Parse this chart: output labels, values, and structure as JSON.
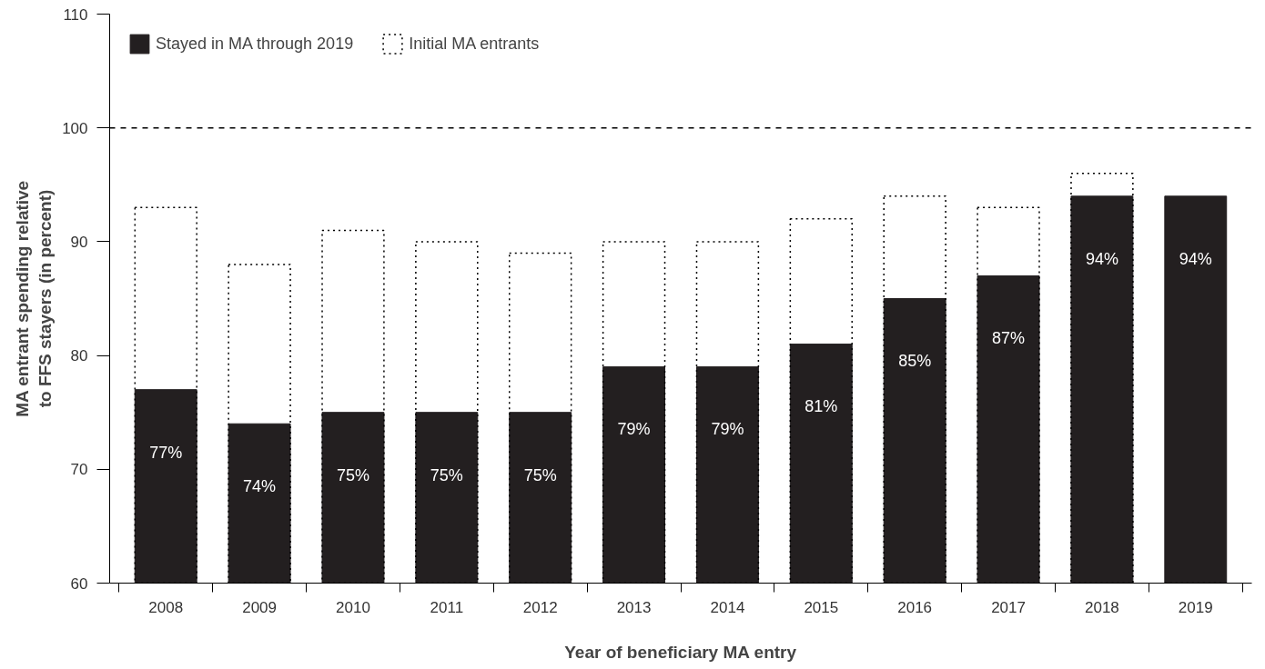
{
  "chart_data": {
    "type": "bar",
    "xlabel": "Year of beneficiary MA entry",
    "ylabel": "MA entrant spending relative to FFS stayers (in percent)",
    "categories": [
      "2008",
      "2009",
      "2010",
      "2011",
      "2012",
      "2013",
      "2014",
      "2015",
      "2016",
      "2017",
      "2018",
      "2019"
    ],
    "series": [
      {
        "name": "Initial MA entrants",
        "color": "#000000",
        "line_style": "dotted",
        "values": [
          93,
          88,
          91,
          90,
          89,
          90,
          90,
          92,
          94,
          93,
          96,
          null
        ]
      },
      {
        "name": "Stayed in MA through 2019",
        "color": "#231f20",
        "line_style": "solid",
        "values": [
          77,
          74,
          75,
          75,
          75,
          79,
          79,
          81,
          85,
          87,
          94,
          94
        ],
        "value_labels": [
          "77%",
          "74%",
          "75%",
          "75%",
          "75%",
          "79%",
          "79%",
          "81%",
          "85%",
          "87%",
          "94%",
          "94%"
        ]
      }
    ],
    "ylim": [
      60,
      110
    ],
    "yticks": [
      60,
      70,
      80,
      90,
      100,
      110
    ],
    "ref_lines": [
      {
        "axis": "y",
        "value": 100,
        "line_style": "dashed",
        "color": "#000000"
      }
    ],
    "legend": "top left",
    "grid": false
  }
}
